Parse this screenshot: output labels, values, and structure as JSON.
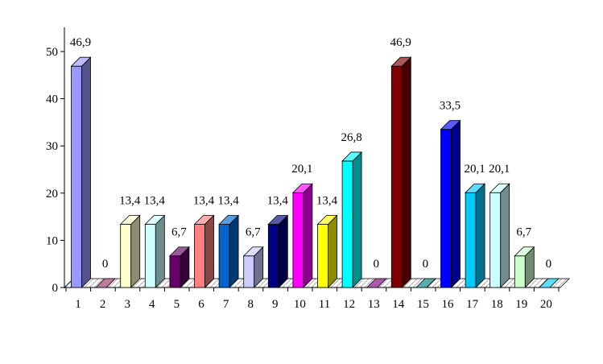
{
  "chart_data": {
    "type": "bar",
    "title": "",
    "xlabel": "",
    "ylabel": "",
    "ylim": [
      0,
      50
    ],
    "yticks": [
      0,
      10,
      20,
      30,
      40,
      50
    ],
    "grid": false,
    "legend": "none",
    "three_d": true,
    "categories": [
      "1",
      "2",
      "3",
      "4",
      "5",
      "6",
      "7",
      "8",
      "9",
      "10",
      "11",
      "12",
      "13",
      "14",
      "15",
      "16",
      "17",
      "18",
      "19",
      "20"
    ],
    "values": [
      46.9,
      0,
      13.4,
      13.4,
      6.7,
      13.4,
      13.4,
      6.7,
      13.4,
      20.1,
      13.4,
      26.8,
      0,
      46.9,
      0,
      33.5,
      20.1,
      20.1,
      6.7,
      0
    ],
    "data_labels": [
      "46,9",
      "0",
      "13,4",
      "13,4",
      "6,7",
      "13,4",
      "13,4",
      "6,7",
      "13,4",
      "20,1",
      "13,4",
      "26,8",
      "0",
      "46,9",
      "0",
      "33,5",
      "20,1",
      "20,1",
      "6,7",
      "0"
    ],
    "colors": [
      "#9999ff",
      "#993366",
      "#ffffcc",
      "#ccffff",
      "#660066",
      "#ff8080",
      "#0066cc",
      "#ccccff",
      "#000080",
      "#ff00ff",
      "#ffff00",
      "#00ffff",
      "#800080",
      "#800000",
      "#008080",
      "#0000ff",
      "#00ccff",
      "#ccffff",
      "#ccffcc",
      "#00ccff"
    ]
  }
}
